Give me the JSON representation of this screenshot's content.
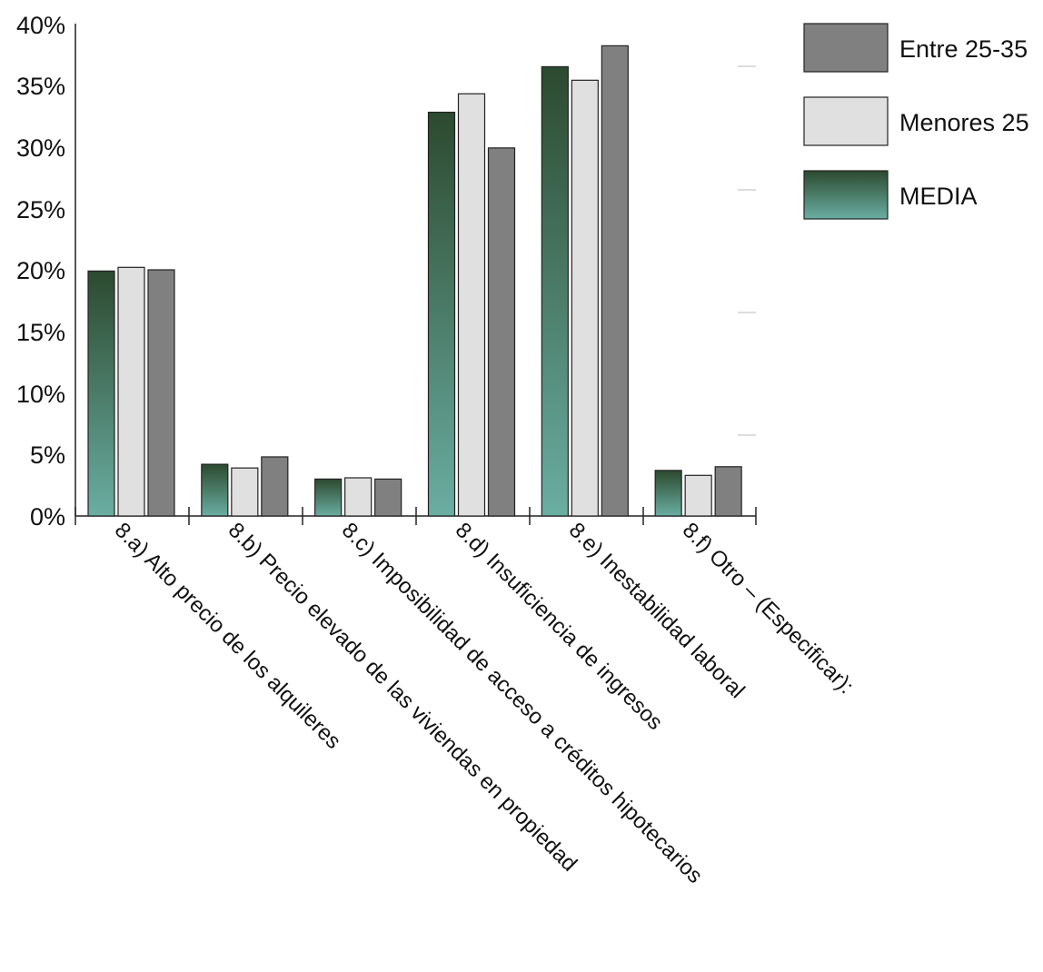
{
  "chart_data": {
    "type": "bar",
    "categories": [
      "8.a) Alto precio de los alquileres",
      "8.b) Precio elevado de las viviendas en propiedad",
      "8.c) Imposibilidad de acceso a créditos hipotecarios",
      "8.d) Insuficiencia de ingresos",
      "8.e) Inestabilidad laboral",
      "8.f) Otro – (Especificar):"
    ],
    "series": [
      {
        "name": "MEDIA",
        "values": [
          19.9,
          4.2,
          3.0,
          32.8,
          36.5,
          3.7
        ]
      },
      {
        "name": "Menores 25",
        "values": [
          20.2,
          3.9,
          3.1,
          34.3,
          35.4,
          3.3
        ]
      },
      {
        "name": "Entre 25-35",
        "values": [
          20.0,
          4.8,
          3.0,
          29.9,
          38.2,
          4.0
        ]
      }
    ],
    "ylim": [
      0,
      40
    ],
    "yticks": [
      "0%",
      "5%",
      "10%",
      "15%",
      "20%",
      "25%",
      "30%",
      "35%",
      "40%"
    ],
    "legend_position": "top-right",
    "legend_order": [
      "Entre 25-35",
      "Menores 25",
      "MEDIA"
    ],
    "colors": {
      "MEDIA_top": "#2c4a2f",
      "MEDIA_bottom": "#6aaea2",
      "Menores 25": "#e0e0e0",
      "Entre 25-35": "#808080",
      "outline": "#222222"
    }
  }
}
